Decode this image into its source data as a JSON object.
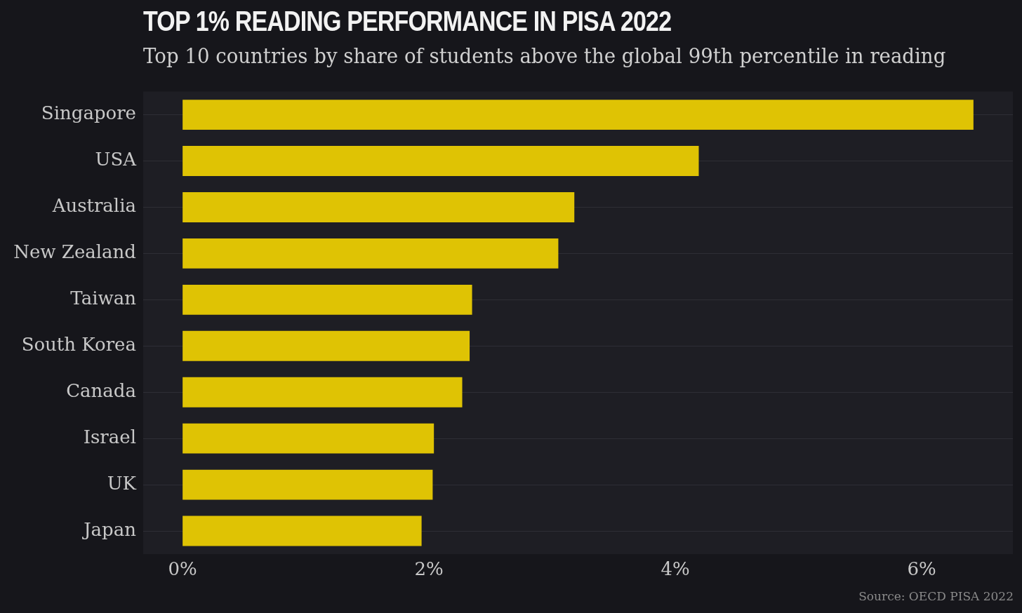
{
  "chart_data": {
    "type": "bar",
    "orientation": "horizontal",
    "title": "TOP 1% READING PERFORMANCE IN PISA 2022",
    "subtitle": "Top 10 countries by share of students above the global 99th percentile in reading",
    "categories": [
      "Singapore",
      "USA",
      "Australia",
      "New Zealand",
      "Taiwan",
      "South Korea",
      "Canada",
      "Israel",
      "UK",
      "Japan"
    ],
    "values": [
      6.42,
      4.19,
      3.18,
      3.05,
      2.35,
      2.33,
      2.27,
      2.04,
      2.03,
      1.94
    ],
    "color": "#dfc304",
    "xlim": [
      -0.32,
      6.74
    ],
    "xticks": [
      {
        "value": 0,
        "label": "0%"
      },
      {
        "value": 2,
        "label": "2%"
      },
      {
        "value": 4,
        "label": "4%"
      },
      {
        "value": 6,
        "label": "6%"
      }
    ],
    "grid": "y",
    "annotations": [
      "Source: OECD PISA 2022"
    ]
  }
}
